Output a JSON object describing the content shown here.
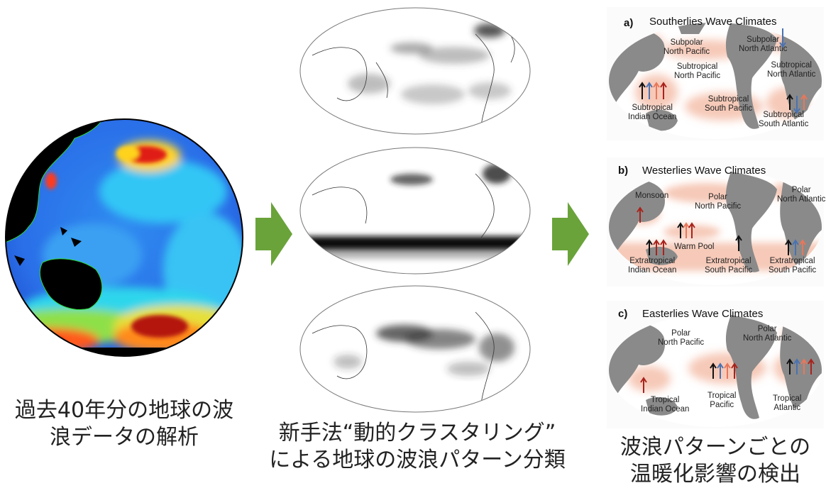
{
  "captions": {
    "left": [
      "過去40年分の地球の波",
      "浪データの解析"
    ],
    "middle": [
      "新手法“動的クラスタリング”",
      "による地球の波浪パターン分類"
    ],
    "right": [
      "波浪パターンごとの",
      "温暖化影響の検出"
    ]
  },
  "panels": [
    {
      "label": "a)",
      "title": "Southerlies Wave Climates",
      "regions": [
        [
          "Subpolar",
          "North Pacific"
        ],
        [
          "Subpolar",
          "North Atlantic"
        ],
        [
          "Subtropical",
          "North Pacific"
        ],
        [
          "Subtropical",
          "North Atlantic"
        ],
        [
          "Subtropical",
          "Indian Ocean"
        ],
        [
          "Subtropical",
          "South Pacific"
        ],
        [
          "Subtropical",
          "South Atlantic"
        ]
      ]
    },
    {
      "label": "b)",
      "title": "Westerlies Wave Climates",
      "regions": [
        [
          "Monsoon"
        ],
        [
          "Polar",
          "North Pacific"
        ],
        [
          "Polar",
          "North Atlantic"
        ],
        [
          "Warm Pool"
        ],
        [
          "Extratropical",
          "Indian Ocean"
        ],
        [
          "Extratropical",
          "South Pacific"
        ],
        [
          "Extratropical",
          "South Pacific"
        ]
      ]
    },
    {
      "label": "c)",
      "title": "Easterlies Wave Climates",
      "regions": [
        [
          "Polar",
          "North Pacific"
        ],
        [
          "Polar",
          "North Atlantic"
        ],
        [
          "Tropical",
          "Indian Ocean"
        ],
        [
          "Tropical",
          "Pacific"
        ],
        [
          "Tropical",
          "Atlantic"
        ]
      ]
    }
  ],
  "colors": {
    "flow_arrow": "#6aa33a",
    "land": "#8a8a8a",
    "ocean_tint": "#f6c9b8",
    "arrow_black": "#111111",
    "arrow_blue": "#4a72b0",
    "arrow_red": "#a8231c",
    "arrow_orange": "#e8775a"
  }
}
